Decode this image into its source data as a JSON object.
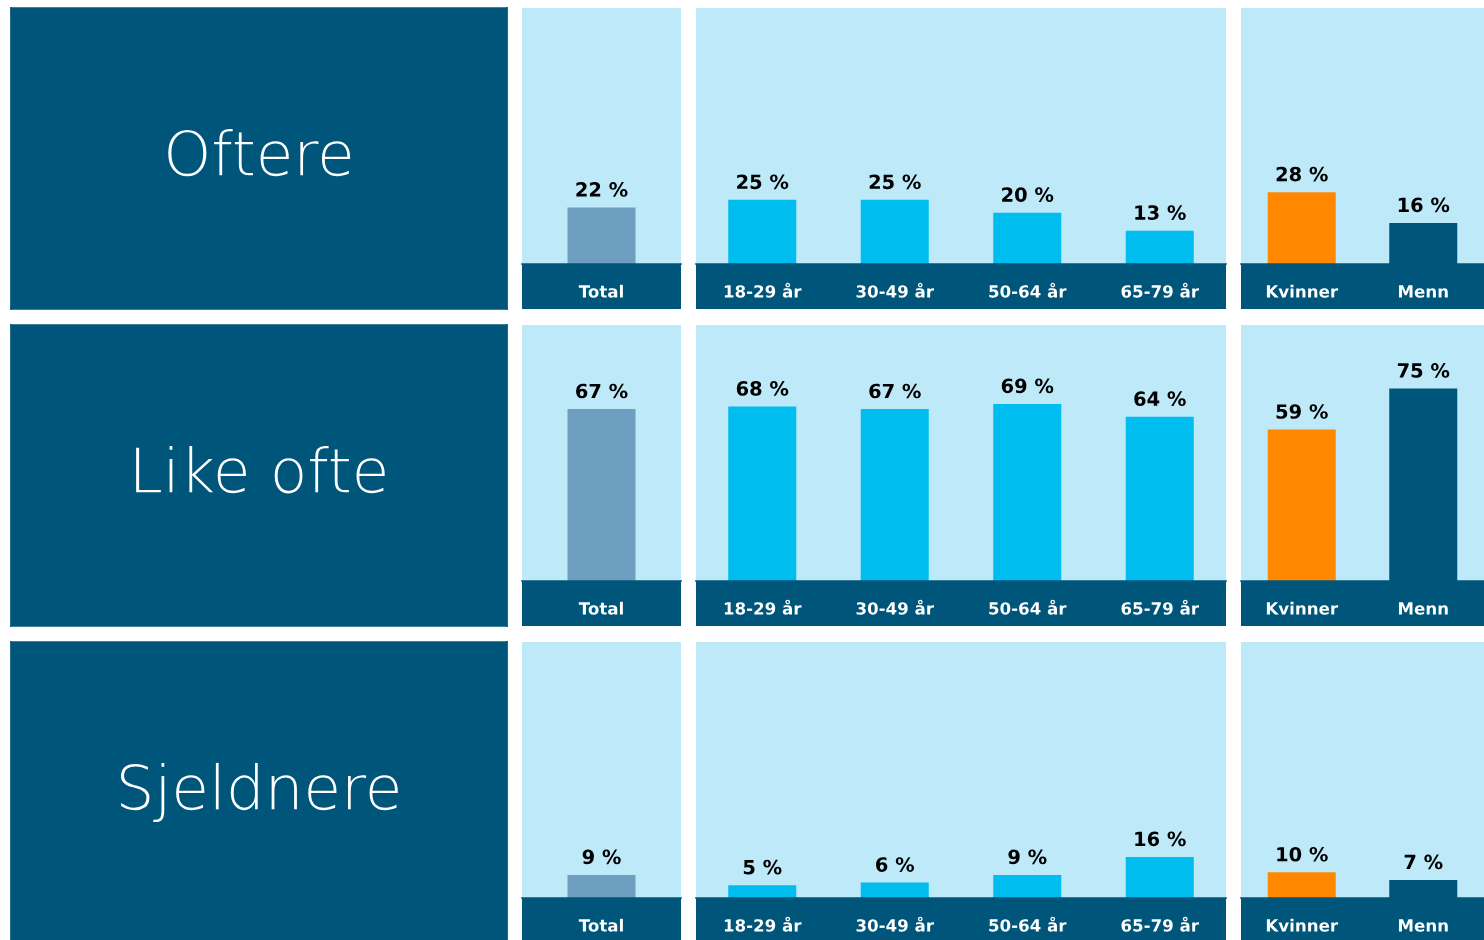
{
  "chart_data": [
    {
      "type": "other",
      "title": "Oftere"
    },
    {
      "type": "bar",
      "categories": [
        "Total"
      ],
      "values": [
        22
      ],
      "colors": [
        "#6f9fc0"
      ],
      "value_labels": [
        "22 %"
      ],
      "tick_labels": "x"
    },
    {
      "type": "bar",
      "categories": [
        "18-29 år",
        "30-49 år",
        "50-64 år",
        "65-79 år"
      ],
      "values": [
        25,
        25,
        20,
        13
      ],
      "colors": [
        "#00bdf0",
        "#00bdf0",
        "#00bdf0",
        "#00bdf0"
      ],
      "value_labels": [
        "25 %",
        "25 %",
        "20 %",
        "13 %"
      ],
      "tick_labels": "x"
    },
    {
      "type": "bar",
      "categories": [
        "Kvinner",
        "Menn"
      ],
      "values": [
        28,
        16
      ],
      "colors": [
        "#ff8800",
        "#00567a"
      ],
      "value_labels": [
        "28 %",
        "16 %"
      ],
      "tick_labels": "x"
    },
    {
      "type": "other",
      "title": "Like ofte"
    },
    {
      "type": "bar",
      "categories": [
        "Total"
      ],
      "values": [
        67
      ],
      "colors": [
        "#6f9fc0"
      ],
      "value_labels": [
        "67 %"
      ],
      "tick_labels": "x"
    },
    {
      "type": "bar",
      "categories": [
        "18-29 år",
        "30-49 år",
        "50-64 år",
        "65-79 år"
      ],
      "values": [
        68,
        67,
        69,
        64
      ],
      "colors": [
        "#00bdf0",
        "#00bdf0",
        "#00bdf0",
        "#00bdf0"
      ],
      "value_labels": [
        "68 %",
        "67 %",
        "69 %",
        "64 %"
      ],
      "tick_labels": "x"
    },
    {
      "type": "bar",
      "categories": [
        "Kvinner",
        "Menn"
      ],
      "values": [
        59,
        75
      ],
      "colors": [
        "#ff8800",
        "#00567a"
      ],
      "value_labels": [
        "59 %",
        "75 %"
      ],
      "tick_labels": "x"
    },
    {
      "type": "other",
      "title": "Sjeldnere"
    },
    {
      "type": "bar",
      "categories": [
        "Total"
      ],
      "values": [
        9
      ],
      "colors": [
        "#6f9fc0"
      ],
      "value_labels": [
        "9 %"
      ],
      "tick_labels": "x"
    },
    {
      "type": "bar",
      "categories": [
        "18-29 år",
        "30-49 år",
        "50-64 år",
        "65-79 år"
      ],
      "values": [
        5,
        6,
        9,
        16
      ],
      "colors": [
        "#00bdf0",
        "#00bdf0",
        "#00bdf0",
        "#00bdf0"
      ],
      "value_labels": [
        "5 %",
        "6 %",
        "9 %",
        "16 %"
      ],
      "tick_labels": "x"
    },
    {
      "type": "bar",
      "categories": [
        "Kvinner",
        "Menn"
      ],
      "values": [
        10,
        7
      ],
      "colors": [
        "#ff8800",
        "#00567a"
      ],
      "value_labels": [
        "10 %",
        "7 %"
      ],
      "tick_labels": "x"
    }
  ]
}
